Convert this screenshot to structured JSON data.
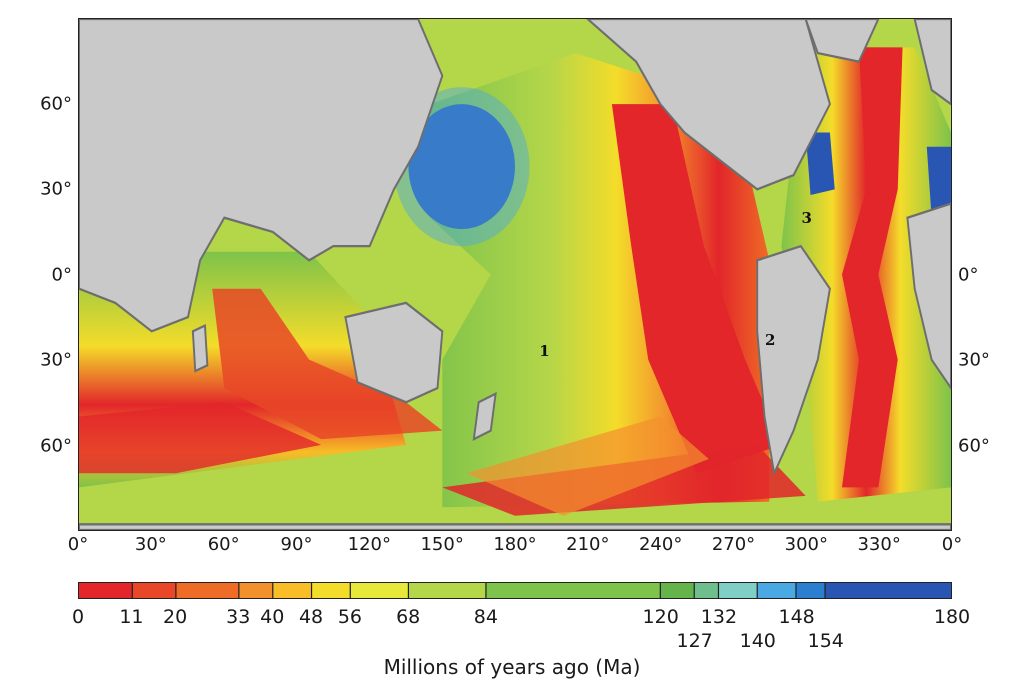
{
  "map": {
    "latitude_labels": [
      {
        "text": "60°",
        "lat": 60,
        "side": "left"
      },
      {
        "text": "30°",
        "lat": 30,
        "side": "left"
      },
      {
        "text": "0°",
        "lat": 0,
        "side": "left"
      },
      {
        "text": "30°",
        "lat": -30,
        "side": "left"
      },
      {
        "text": "60°",
        "lat": -60,
        "side": "left"
      },
      {
        "text": "0°",
        "lat": 0,
        "side": "right"
      },
      {
        "text": "30°",
        "lat": -30,
        "side": "right"
      },
      {
        "text": "60°",
        "lat": -60,
        "side": "right"
      }
    ],
    "longitude_labels": [
      {
        "text": "0°",
        "lon": 0
      },
      {
        "text": "30°",
        "lon": 30
      },
      {
        "text": "60°",
        "lon": 60
      },
      {
        "text": "90°",
        "lon": 90
      },
      {
        "text": "120°",
        "lon": 120
      },
      {
        "text": "150°",
        "lon": 150
      },
      {
        "text": "180°",
        "lon": 180
      },
      {
        "text": "210°",
        "lon": 210
      },
      {
        "text": "240°",
        "lon": 240
      },
      {
        "text": "270°",
        "lon": 270
      },
      {
        "text": "300°",
        "lon": 300
      },
      {
        "text": "330°",
        "lon": 330
      },
      {
        "text": "0°",
        "lon": 360
      }
    ],
    "markers": [
      {
        "text": "1",
        "lon": 190,
        "lat": -27
      },
      {
        "text": "2",
        "lon": 283,
        "lat": -23
      },
      {
        "text": "3",
        "lon": 298,
        "lat": 20
      }
    ]
  },
  "legend": {
    "title": "Millions of years ago (Ma)",
    "min": 0,
    "max": 180,
    "boundaries": [
      0,
      11,
      20,
      33,
      40,
      48,
      56,
      68,
      84,
      120,
      127,
      132,
      140,
      148,
      154,
      180
    ],
    "colors": [
      "#e2262a",
      "#e84827",
      "#ef6c26",
      "#f3902e",
      "#f8bd27",
      "#f4dc2a",
      "#e6e83a",
      "#b4d649",
      "#7ec34a",
      "#65b44b",
      "#6fbf8c",
      "#7fcfc7",
      "#4aa8e3",
      "#2b7fd0",
      "#2a56b3"
    ],
    "tick_labels": [
      {
        "text": "0",
        "value": 0,
        "row": 0
      },
      {
        "text": "11",
        "value": 11,
        "row": 0
      },
      {
        "text": "20",
        "value": 20,
        "row": 0
      },
      {
        "text": "33",
        "value": 33,
        "row": 0
      },
      {
        "text": "40",
        "value": 40,
        "row": 0
      },
      {
        "text": "48",
        "value": 48,
        "row": 0
      },
      {
        "text": "56",
        "value": 56,
        "row": 0
      },
      {
        "text": "68",
        "value": 68,
        "row": 0
      },
      {
        "text": "84",
        "value": 84,
        "row": 0
      },
      {
        "text": "120",
        "value": 120,
        "row": 0
      },
      {
        "text": "127",
        "value": 127,
        "row": 1
      },
      {
        "text": "132",
        "value": 132,
        "row": 0
      },
      {
        "text": "140",
        "value": 140,
        "row": 1
      },
      {
        "text": "148",
        "value": 148,
        "row": 0
      },
      {
        "text": "154",
        "value": 154,
        "row": 1
      },
      {
        "text": "180",
        "value": 180,
        "row": 0
      }
    ]
  },
  "colors": {
    "land": "#c9c9c9",
    "shelf": "#6e6e6e",
    "frame": "#222222"
  }
}
